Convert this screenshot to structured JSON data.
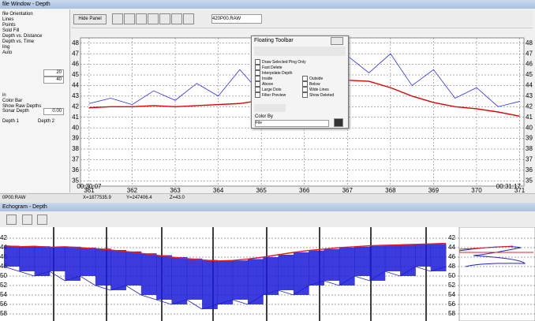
{
  "window": {
    "title": "file Window - Depth",
    "status": [
      "0P00.RAW",
      "X=1877535.9",
      "Y=247406.4",
      "Z=43.0"
    ]
  },
  "panel": {
    "items": [
      "file Orientation",
      "Lines",
      "Points",
      "Sold Fill",
      "Depth vs. Distance",
      "Depth vs. Time",
      "ling",
      "Auto"
    ],
    "field1": 20,
    "field2": 40,
    "items2": [
      "in",
      "Color Bar",
      "Show Raw Depths"
    ],
    "sonar_depth_label": "Sonar Depth",
    "sonar_depth": "0.00",
    "depth1": "Depth 1",
    "depth2": "Depth 2"
  },
  "toolbar": {
    "hide_panel": "Hide Panel",
    "file": "420P00.RAW"
  },
  "floating_toolbar": {
    "title": "Floating Toolbar",
    "options": [
      "Draw Selected Ping Only",
      "Fast Delete",
      "Interpolate Depth",
      "Inside",
      "Outside",
      "Above",
      "Below",
      "Large Dots",
      "Wide Lines",
      "Filter Preview",
      "Show Deleted"
    ],
    "color_by": "Color By",
    "color_value": "File"
  },
  "echogram_window": {
    "title": "Echogram - Depth"
  },
  "chart_data": [
    {
      "type": "line",
      "x": [
        361,
        361.5,
        362,
        362.5,
        363,
        363.5,
        364,
        364.5,
        365,
        365.5,
        366,
        366.5,
        367,
        367.5,
        368,
        368.5,
        369,
        369.5,
        370,
        370.5,
        371
      ],
      "series": [
        {
          "color": "#2b2bff",
          "values": [
            42.3,
            42.8,
            42.2,
            43.5,
            42.6,
            44.2,
            43.0,
            45.5,
            43.2,
            46.0,
            44.5,
            46.5,
            46.8,
            45.2,
            47.0,
            44.0,
            45.5,
            42.8,
            43.8,
            42.0,
            42.5
          ]
        },
        {
          "color": "#e00000",
          "values": [
            41.9,
            42.0,
            42.0,
            42.1,
            42.0,
            42.1,
            42.2,
            42.3,
            42.6,
            43.1,
            43.6,
            44.1,
            44.5,
            44.4,
            43.8,
            43.0,
            42.4,
            42.0,
            41.8,
            41.5,
            41.1
          ]
        }
      ],
      "xlim": [
        360.8,
        371.1
      ],
      "xticks": [
        361,
        362,
        363,
        364,
        365,
        366,
        367,
        368,
        369,
        370,
        371
      ],
      "ylim": [
        34.5,
        48.5
      ],
      "yticks": [
        35,
        36,
        37,
        38,
        39,
        40,
        41,
        42,
        43,
        44,
        45,
        46,
        47,
        48
      ],
      "annotations": [
        "00:30:07",
        "00:31:17"
      ],
      "grid": true
    },
    {
      "type": "echogram",
      "series": [
        {
          "color": "#1a1ad8",
          "values": [
            48,
            49,
            50,
            49,
            51,
            50,
            52,
            53,
            52,
            54,
            55,
            56,
            55,
            57,
            56,
            55,
            56,
            54,
            53,
            54,
            52,
            51,
            52,
            50,
            51,
            49,
            50,
            48,
            49,
            48
          ]
        },
        {
          "color": "#e02020",
          "values": [
            43.6,
            43.8,
            43.7,
            43.9,
            43.8,
            44.0,
            44.2,
            44.5,
            44.8,
            45.2,
            45.6,
            46.0,
            46.3,
            46.6,
            46.8,
            46.7,
            46.4,
            46.0,
            45.5,
            45.0,
            44.6,
            44.3,
            44.0,
            43.8,
            43.6,
            43.5,
            43.4,
            43.3,
            43.2,
            43.1
          ]
        }
      ],
      "ylim": [
        40,
        59
      ],
      "yticks": [
        42,
        44,
        46,
        48,
        50,
        52,
        54,
        56,
        58
      ],
      "grid": true
    }
  ]
}
